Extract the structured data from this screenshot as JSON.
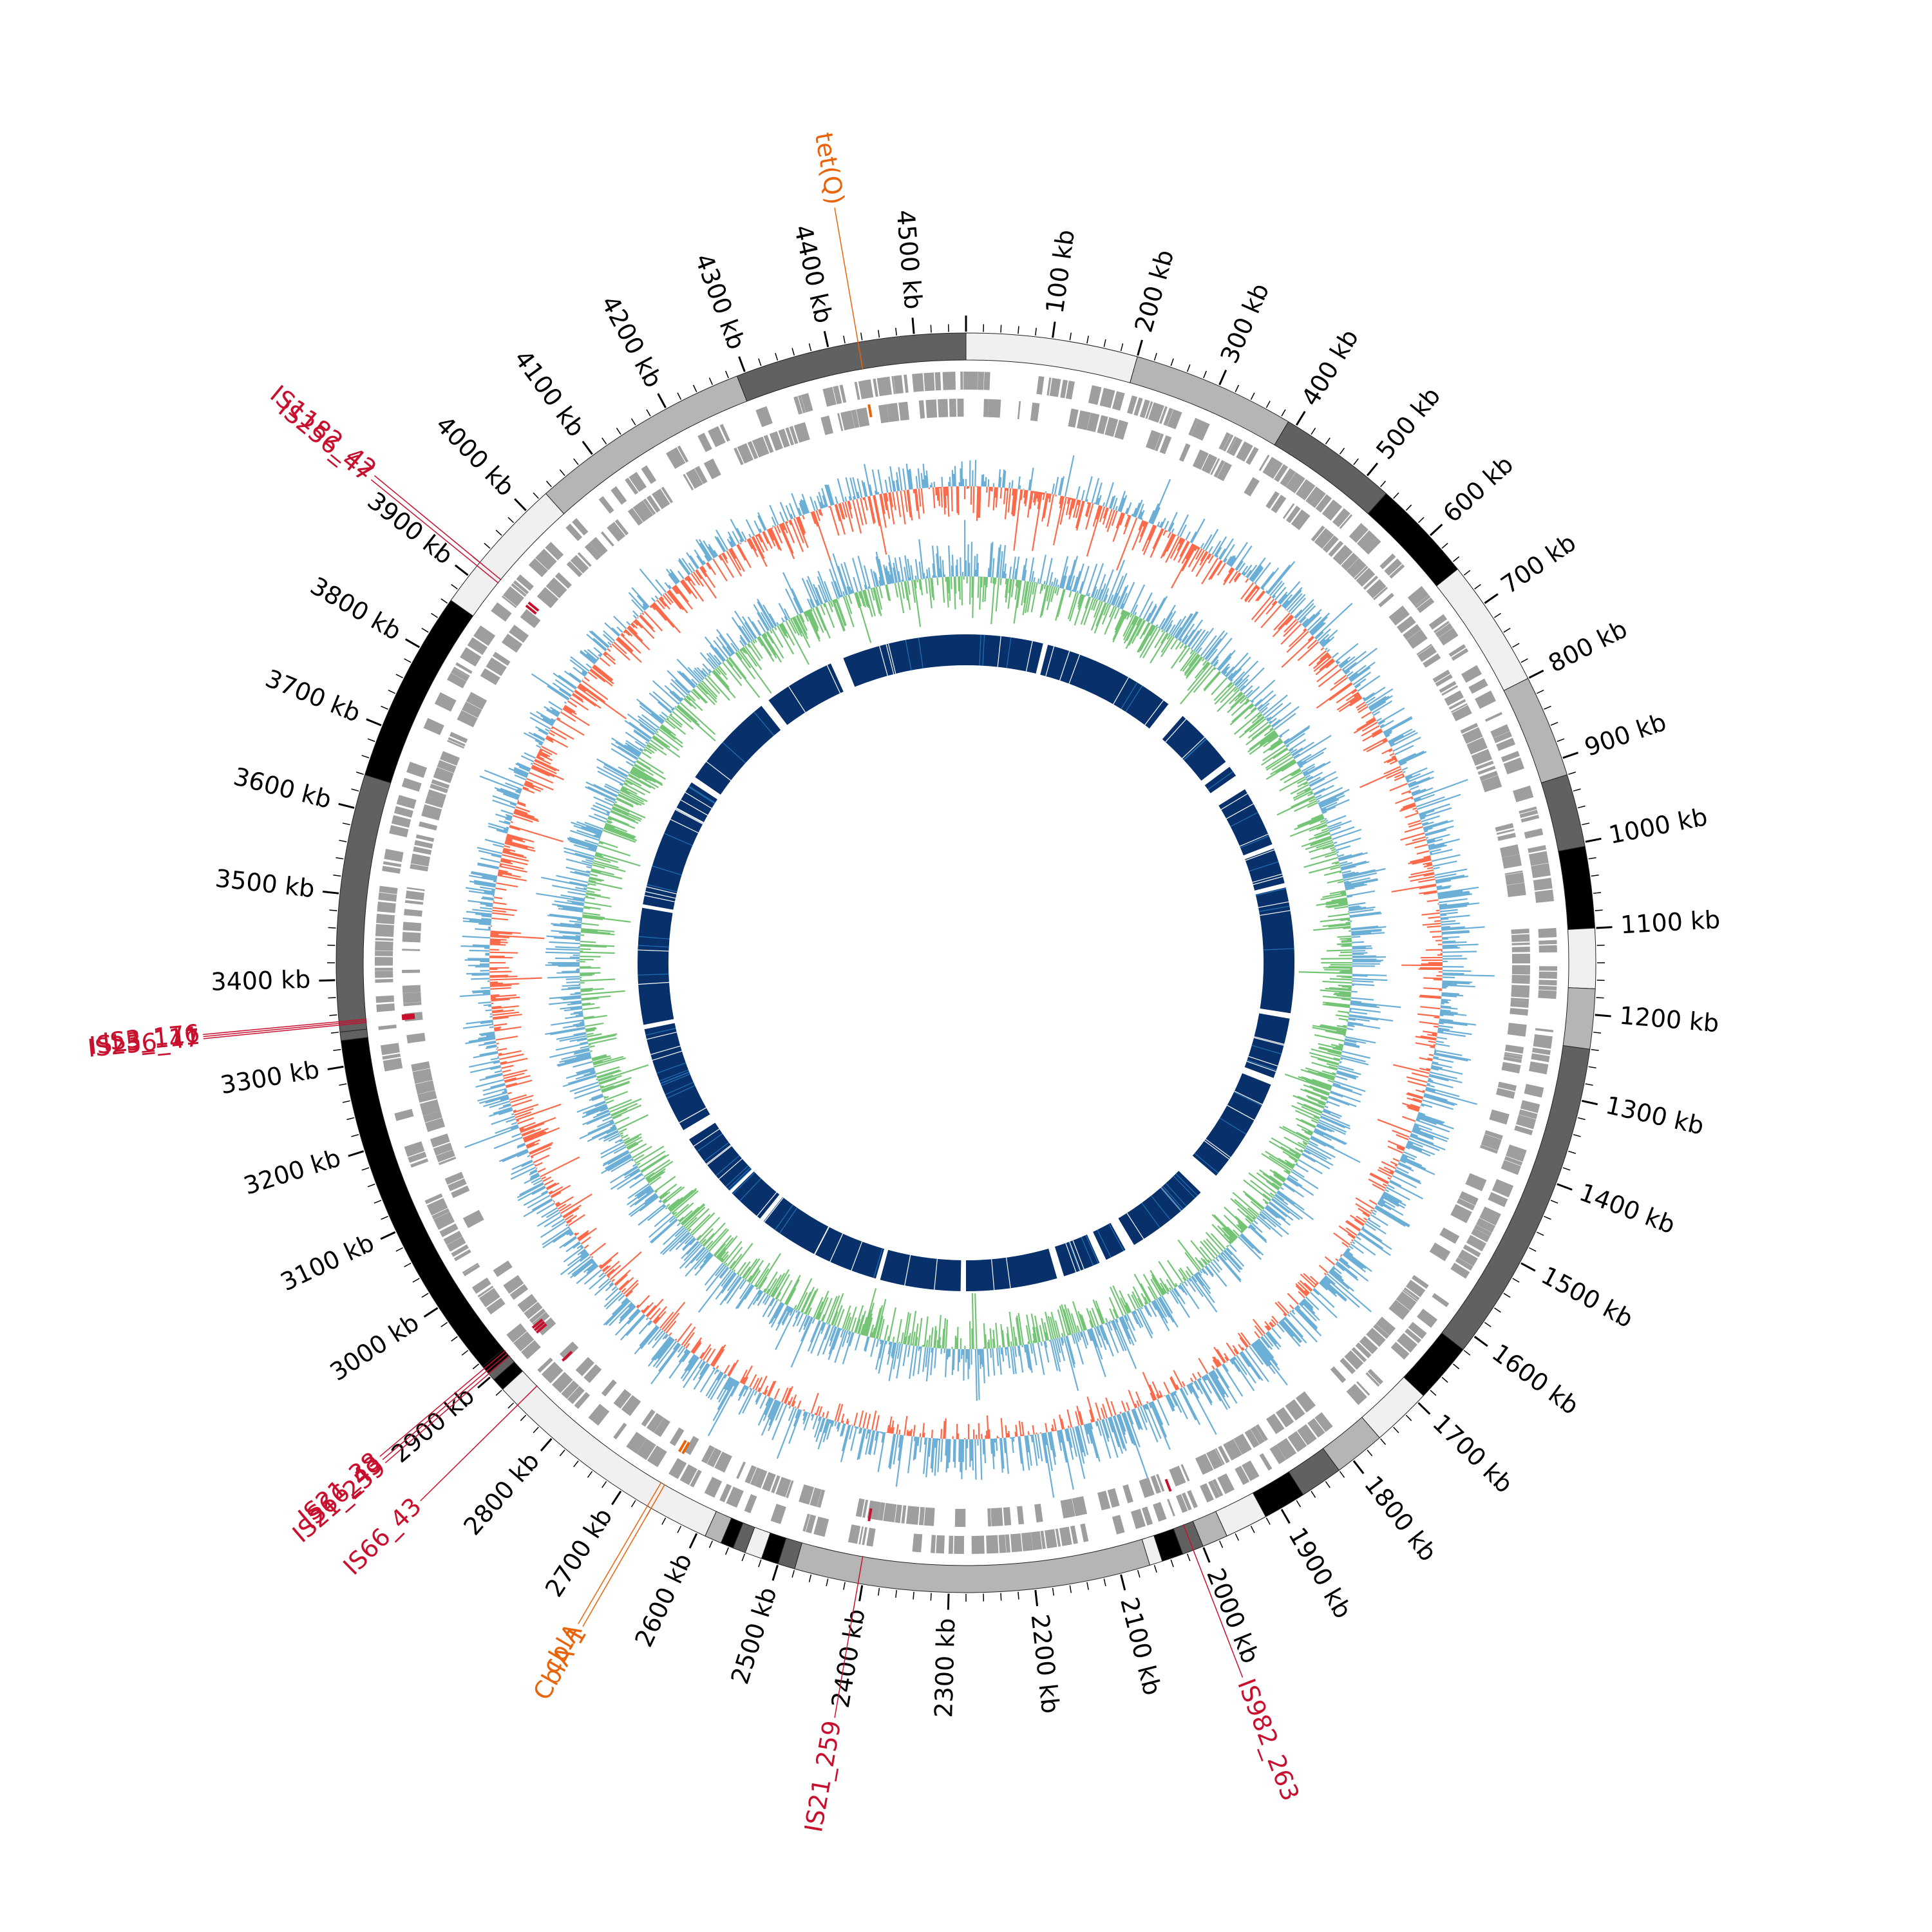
{
  "genome": {
    "total_kb": 4560,
    "tick_labels": [
      "100 kb",
      "200 kb",
      "300 kb",
      "400 kb",
      "500 kb",
      "600 kb",
      "700 kb",
      "800 kb",
      "900 kb",
      "1000 kb",
      "1100 kb",
      "1200 kb",
      "1300 kb",
      "1400 kb",
      "1500 kb",
      "1600 kb",
      "1700 kb",
      "1800 kb",
      "1900 kb",
      "2000 kb",
      "2100 kb",
      "2200 kb",
      "2300 kb",
      "2400 kb",
      "2500 kb",
      "2600 kb",
      "2700 kb",
      "2800 kb",
      "2900 kb",
      "3000 kb",
      "3100 kb",
      "3200 kb",
      "3300 kb",
      "3400 kb",
      "3500 kb",
      "3600 kb",
      "3700 kb",
      "3800 kb",
      "3900 kb",
      "4000 kb",
      "4100 kb",
      "4200 kb",
      "4300 kb",
      "4400 kb",
      "4500 kb"
    ],
    "contig_blocks": [
      {
        "start": 0,
        "end": 200,
        "color": "#f0f0f0"
      },
      {
        "start": 200,
        "end": 390,
        "color": "#b5b5b5"
      },
      {
        "start": 390,
        "end": 530,
        "color": "#616161"
      },
      {
        "start": 530,
        "end": 650,
        "color": "#000000"
      },
      {
        "start": 650,
        "end": 800,
        "color": "#f0f0f0"
      },
      {
        "start": 800,
        "end": 920,
        "color": "#b5b5b5"
      },
      {
        "start": 920,
        "end": 1005,
        "color": "#616161"
      },
      {
        "start": 1005,
        "end": 1100,
        "color": "#000000"
      },
      {
        "start": 1100,
        "end": 1170,
        "color": "#f0f0f0"
      },
      {
        "start": 1170,
        "end": 1240,
        "color": "#b5b5b5"
      },
      {
        "start": 1240,
        "end": 1620,
        "color": "#616161"
      },
      {
        "start": 1620,
        "end": 1690,
        "color": "#000000"
      },
      {
        "start": 1690,
        "end": 1760,
        "color": "#f0f0f0"
      },
      {
        "start": 1760,
        "end": 1820,
        "color": "#b5b5b5"
      },
      {
        "start": 1820,
        "end": 1870,
        "color": "#616161"
      },
      {
        "start": 1870,
        "end": 1920,
        "color": "#000000"
      },
      {
        "start": 1920,
        "end": 1970,
        "color": "#f0f0f0"
      },
      {
        "start": 1970,
        "end": 2000,
        "color": "#b5b5b5"
      },
      {
        "start": 2000,
        "end": 2025,
        "color": "#616161"
      },
      {
        "start": 2025,
        "end": 2050,
        "color": "#000000"
      },
      {
        "start": 2050,
        "end": 2065,
        "color": "#f0f0f0"
      },
      {
        "start": 2065,
        "end": 2480,
        "color": "#b5b5b5"
      },
      {
        "start": 2480,
        "end": 2500,
        "color": "#616161"
      },
      {
        "start": 2500,
        "end": 2520,
        "color": "#000000"
      },
      {
        "start": 2520,
        "end": 2540,
        "color": "#f0f0f0"
      },
      {
        "start": 2540,
        "end": 2555,
        "color": "#616161"
      },
      {
        "start": 2555,
        "end": 2570,
        "color": "#000000"
      },
      {
        "start": 2570,
        "end": 2590,
        "color": "#b5b5b5"
      },
      {
        "start": 2590,
        "end": 2880,
        "color": "#f0f0f0"
      },
      {
        "start": 2880,
        "end": 2895,
        "color": "#000000"
      },
      {
        "start": 2895,
        "end": 2905,
        "color": "#616161"
      },
      {
        "start": 2905,
        "end": 2915,
        "color": "#000000"
      },
      {
        "start": 2915,
        "end": 3330,
        "color": "#000000"
      },
      {
        "start": 3330,
        "end": 3340,
        "color": "#616161"
      },
      {
        "start": 3340,
        "end": 3640,
        "color": "#616161"
      },
      {
        "start": 3640,
        "end": 3865,
        "color": "#000000"
      },
      {
        "start": 3865,
        "end": 4030,
        "color": "#f0f0f0"
      },
      {
        "start": 4030,
        "end": 4290,
        "color": "#b5b5b5"
      },
      {
        "start": 4290,
        "end": 4560,
        "color": "#616161"
      }
    ],
    "feature_labels": [
      {
        "label": "tet(Q)",
        "pos": 4435,
        "color": "#e8630a"
      },
      {
        "label": "IS1182_42",
        "pos": 3920,
        "color": "#c8102e"
      },
      {
        "label": "IS256_47",
        "pos": 3915,
        "color": "#c8102e"
      },
      {
        "label": "IS3_176",
        "pos": 3352,
        "color": "#c8102e"
      },
      {
        "label": "ISL3_111",
        "pos": 3350,
        "color": "#c8102e"
      },
      {
        "label": "IS256_47",
        "pos": 3348,
        "color": "#c8102e"
      },
      {
        "label": "IS21_38",
        "pos": 2912,
        "color": "#c8102e"
      },
      {
        "label": "IS66_43",
        "pos": 2908,
        "color": "#c8102e"
      },
      {
        "label": "IS21_259",
        "pos": 2904,
        "color": "#c8102e"
      },
      {
        "label": "IS66_43",
        "pos": 2855,
        "color": "#c8102e"
      },
      {
        "label": "cblA",
        "pos": 2665,
        "color": "#e8630a"
      },
      {
        "label": "CblA-1",
        "pos": 2660,
        "color": "#e8630a"
      },
      {
        "label": "IS21_259",
        "pos": 2405,
        "color": "#c8102e"
      },
      {
        "label": "IS982_263",
        "pos": 2012,
        "color": "#c8102e"
      }
    ],
    "gap_regions": [
      [
        4250,
        4280
      ],
      [
        4070,
        4090
      ],
      [
        3840,
        3855
      ],
      [
        3540,
        3548
      ],
      [
        3270,
        3280
      ],
      [
        3005,
        3030
      ],
      [
        2855,
        2862
      ],
      [
        2760,
        2770
      ],
      [
        2470,
        2480
      ],
      [
        2280,
        2290
      ],
      [
        2060,
        2075
      ],
      [
        1960,
        1975
      ],
      [
        1890,
        1910
      ],
      [
        1650,
        1700
      ],
      [
        1400,
        1415
      ],
      [
        1250,
        1262
      ],
      [
        960,
        970
      ],
      [
        870,
        880
      ],
      [
        700,
        735
      ],
      [
        660,
        675
      ],
      [
        480,
        520
      ],
      [
        170,
        180
      ]
    ],
    "colors": {
      "skew_positive": "#6baed6",
      "skew_negative": "#fb6a4a",
      "gc_positive": "#74c476",
      "gc_negative": "#6baed6",
      "homology": "#08306b",
      "cds": "#9e9e9e",
      "ticks": "#000000"
    }
  }
}
